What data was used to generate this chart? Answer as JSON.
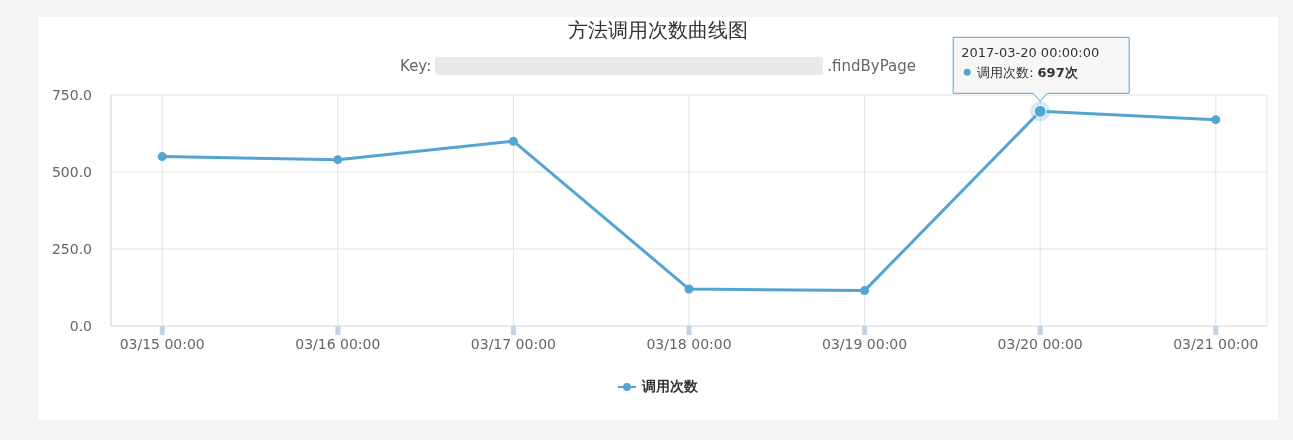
{
  "chart_data": {
    "type": "line",
    "title": "方法调用次数曲线图",
    "subtitle": "Key: .findByPage",
    "x": [
      "2017-03-15",
      "2017-03-16",
      "2017-03-17",
      "2017-03-18",
      "2017-03-19",
      "2017-03-20",
      "2017-03-21"
    ],
    "series": [
      {
        "name": "调用次数",
        "color": "#55a5d2",
        "values": [
          550,
          540,
          600,
          120,
          115,
          697,
          670
        ]
      }
    ],
    "xlim": [
      "2017-03-14T17:00",
      "2017-03-21T07:00"
    ],
    "xticks": [
      {
        "value": "2017-03-15",
        "label": "03/15 00:00"
      },
      {
        "value": "2017-03-16",
        "label": "03/16 00:00"
      },
      {
        "value": "2017-03-17",
        "label": "03/17 00:00"
      },
      {
        "value": "2017-03-18",
        "label": "03/18 00:00"
      },
      {
        "value": "2017-03-19",
        "label": "03/19 00:00"
      },
      {
        "value": "2017-03-20",
        "label": "03/20 00:00"
      },
      {
        "value": "2017-03-21",
        "label": "03/21 00:00"
      }
    ],
    "ylim": [
      0,
      750
    ],
    "yticks": [
      {
        "value": 0,
        "label": "0.0"
      },
      {
        "value": 250,
        "label": "250.0"
      },
      {
        "value": 500,
        "label": "500.0"
      },
      {
        "value": 750,
        "label": "750.0"
      }
    ],
    "annotations": [
      {
        "text": "2017-03-20 00:00:00\n调用次数: 697次",
        "x": "2017-03-20",
        "y": 697
      }
    ],
    "grid": true,
    "legend": "bottom",
    "marker": "circle",
    "line_style": "solid"
  }
}
